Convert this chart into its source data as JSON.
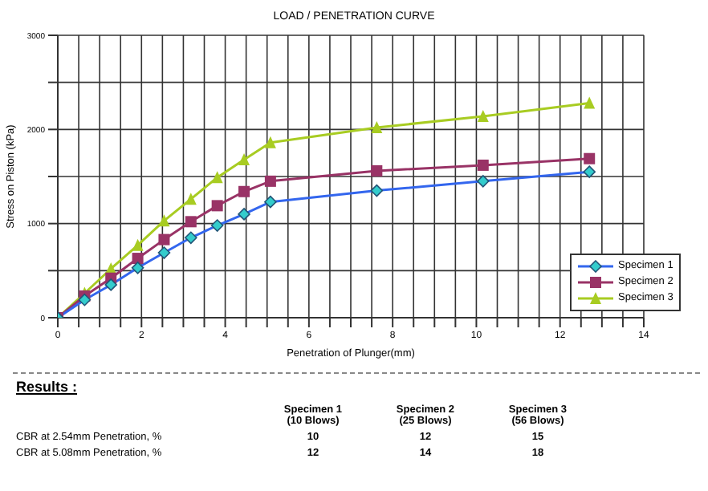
{
  "chart_data": {
    "type": "line",
    "title": "LOAD / PENETRATION CURVE",
    "xlabel": "Penetration of Plunger(mm)",
    "ylabel": "Stress on Piston (kPa)",
    "x": [
      0,
      0.64,
      1.27,
      1.91,
      2.54,
      3.18,
      3.81,
      4.45,
      5.08,
      7.62,
      10.16,
      12.7
    ],
    "series": [
      {
        "name": "Specimen 1",
        "color": "#3366ee",
        "marker": "diamond",
        "values": [
          0,
          190,
          350,
          530,
          690,
          850,
          980,
          1100,
          1230,
          1350,
          1450,
          1550
        ]
      },
      {
        "name": "Specimen 2",
        "color": "#993366",
        "marker": "square",
        "values": [
          0,
          230,
          420,
          630,
          830,
          1020,
          1190,
          1340,
          1450,
          1560,
          1620,
          1690
        ]
      },
      {
        "name": "Specimen 3",
        "color": "#a8cc22",
        "marker": "triangle",
        "values": [
          0,
          260,
          520,
          770,
          1030,
          1260,
          1490,
          1680,
          1860,
          2020,
          2140,
          2280
        ]
      }
    ],
    "xlim": [
      0,
      14
    ],
    "xticks": [
      0,
      {
        "value": 0.5,
        "label": null
      },
      2,
      {
        "value": 1.5,
        "label": null
      },
      {
        "value": 1,
        "label": null
      },
      {
        "value": 2.5,
        "label": null
      },
      {
        "value": 3,
        "label": null
      },
      {
        "value": 3.5,
        "label": null
      },
      4,
      {
        "value": 4.5,
        "label": null
      },
      {
        "value": 5,
        "label": null
      },
      {
        "value": 5.5,
        "label": null
      },
      6,
      {
        "value": 6.5,
        "label": null
      },
      {
        "value": 7,
        "label": null
      },
      {
        "value": 7.5,
        "label": null
      },
      8,
      {
        "value": 8.5,
        "label": null
      },
      {
        "value": 9,
        "label": null
      },
      {
        "value": 9.5,
        "label": null
      },
      10,
      {
        "value": 10.5,
        "label": null
      },
      {
        "value": 11,
        "label": null
      },
      {
        "value": 11.5,
        "label": null
      },
      12,
      {
        "value": 12.5,
        "label": null
      },
      {
        "value": 13,
        "label": null
      },
      {
        "value": 13.5,
        "label": null
      },
      14
    ],
    "ylim": [
      0,
      3000
    ],
    "yticks": [
      0,
      {
        "value": 500,
        "label": null
      },
      1000,
      {
        "value": 1500,
        "label": null
      },
      2000,
      {
        "value": 2500,
        "label": null
      },
      3000
    ],
    "grid": true,
    "legend": "bottom right",
    "line_style": "solid",
    "annotations": [
      "Results :",
      "Specimen 1",
      "(10 Blows)",
      "Specimen 2",
      "(25 Blows)",
      "Specimen 3",
      "(56 Blows)",
      "CBR at 2.54mm Penetration, %",
      "10",
      "12",
      "15",
      "CBR at 5.08mm Penetration, %",
      "12",
      "14",
      "18"
    ]
  }
}
